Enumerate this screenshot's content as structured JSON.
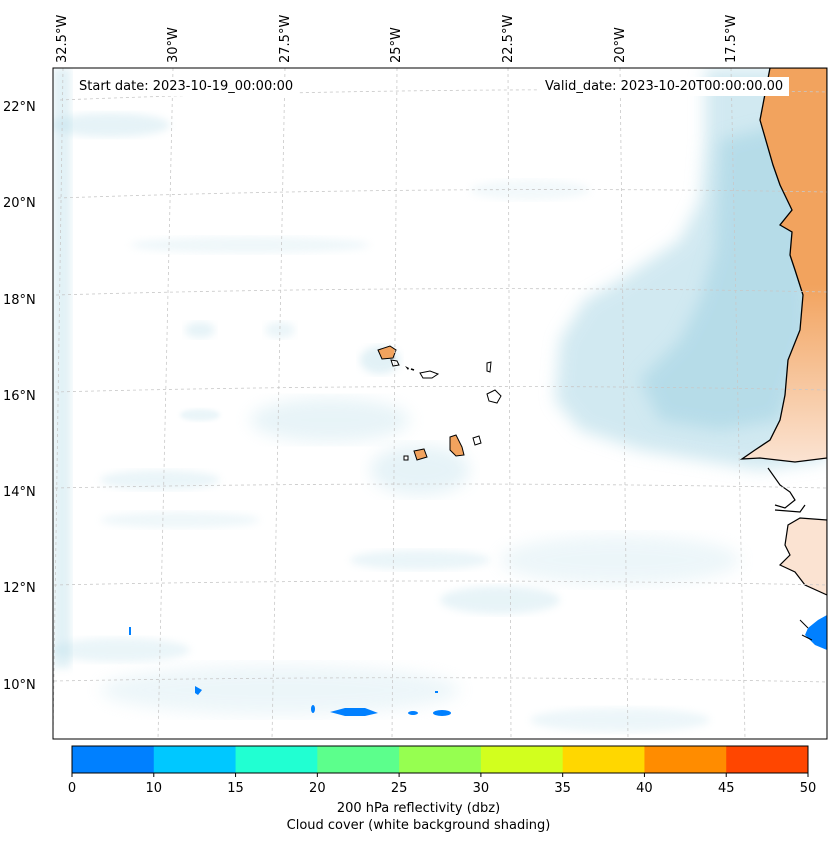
{
  "map": {
    "lon_labels": [
      "32.5°W",
      "30°W",
      "27.5°W",
      "25°W",
      "22.5°W",
      "20°W",
      "17.5°W"
    ],
    "lat_labels": [
      "22°N",
      "20°N",
      "18°N",
      "16°N",
      "14°N",
      "12°N",
      "10°N"
    ],
    "start_date": "Start date: 2023-10-19_00:00:00",
    "valid_date": "Valid_date: 2023-10-20T00:00:00.00",
    "colors": {
      "land": "#f2a35e",
      "land_light": "#fbe3d2",
      "cloud": "#add8e6",
      "coast": "#000000",
      "grid": "#c8c8c8"
    }
  },
  "colorbar": {
    "ticks": [
      "0",
      "10",
      "15",
      "20",
      "25",
      "30",
      "35",
      "40",
      "45",
      "50"
    ],
    "colors": [
      "#0080ff",
      "#00c8ff",
      "#21ffd2",
      "#5cff8c",
      "#96ff50",
      "#d2ff1e",
      "#ffd700",
      "#ff8c00",
      "#ff4600"
    ],
    "label_line1": "200 hPa reflectivity (dbz)",
    "label_line2": "Cloud cover (white background shading)"
  }
}
